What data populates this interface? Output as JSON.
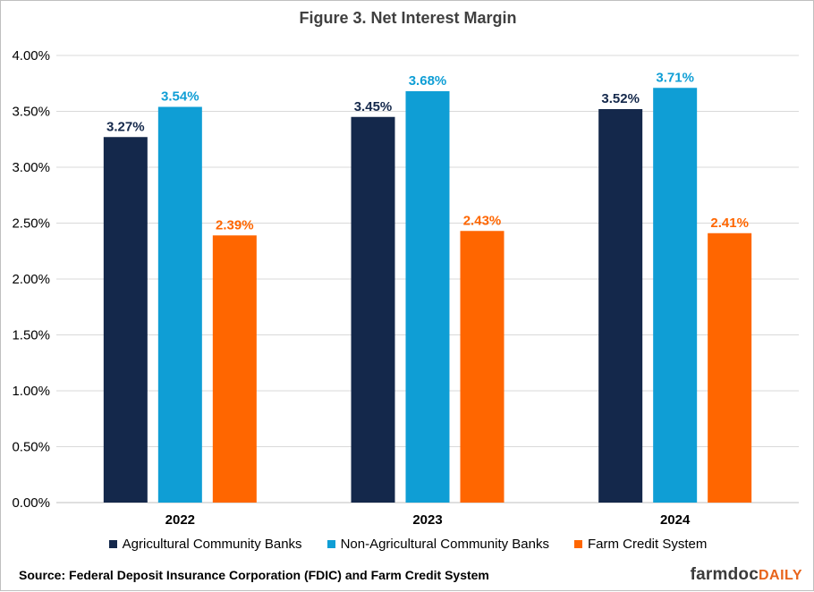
{
  "chart_data": {
    "type": "bar",
    "title": "Figure 3. Net Interest Margin",
    "categories": [
      "2022",
      "2023",
      "2024"
    ],
    "series": [
      {
        "name": "Agricultural Community Banks",
        "values": [
          3.27,
          3.45,
          3.52
        ],
        "color": "#14284b"
      },
      {
        "name": "Non-Agricultural Community Banks",
        "values": [
          3.54,
          3.68,
          3.71
        ],
        "color": "#0f9ed5"
      },
      {
        "name": "Farm Credit System",
        "values": [
          2.39,
          2.43,
          2.41
        ],
        "color": "#ff6600"
      }
    ],
    "ylim": [
      0,
      4
    ],
    "yticks": [
      "0.00%",
      "0.50%",
      "1.00%",
      "1.50%",
      "2.00%",
      "2.50%",
      "3.00%",
      "3.50%",
      "4.00%"
    ],
    "value_labels": [
      [
        "3.27%",
        "3.45%",
        "3.52%"
      ],
      [
        "3.54%",
        "3.68%",
        "3.71%"
      ],
      [
        "2.39%",
        "2.43%",
        "2.41%"
      ]
    ],
    "grid": true,
    "legend_position": "bottom"
  },
  "source_text": "Source: Federal Deposit Insurance Corporation (FDIC) and Farm Credit System",
  "logo": {
    "main": "farmdoc",
    "accent": "DAILY"
  }
}
